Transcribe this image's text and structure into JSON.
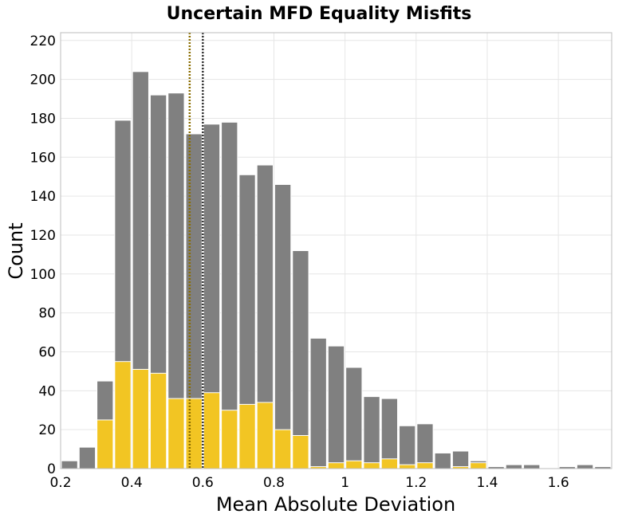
{
  "chart_data": {
    "type": "bar",
    "title": "Uncertain MFD Equality Misfits",
    "xlabel": "Mean Absolute Deviation",
    "ylabel": "Count",
    "xlim": [
      0.2,
      1.75
    ],
    "ylim": [
      0,
      224
    ],
    "x_ticks": [
      0.2,
      0.4,
      0.6,
      0.8,
      1,
      1.2,
      1.4,
      1.6
    ],
    "x_tick_labels": [
      "0.2",
      "0.4",
      "0.6",
      "0.8",
      "1",
      "1.2",
      "1.4",
      "1.6"
    ],
    "y_ticks": [
      0,
      20,
      40,
      60,
      80,
      100,
      120,
      140,
      160,
      180,
      200,
      220
    ],
    "y_tick_labels": [
      "0",
      "20",
      "40",
      "60",
      "80",
      "100",
      "120",
      "140",
      "160",
      "180",
      "200",
      "220"
    ],
    "bin_width": 0.05,
    "bin_starts": [
      0.2,
      0.25,
      0.3,
      0.35,
      0.4,
      0.45,
      0.5,
      0.55,
      0.6,
      0.65,
      0.7,
      0.75,
      0.8,
      0.85,
      0.9,
      0.95,
      1.0,
      1.05,
      1.1,
      1.15,
      1.2,
      1.25,
      1.3,
      1.35,
      1.4,
      1.45,
      1.5,
      1.55,
      1.6,
      1.65,
      1.7
    ],
    "grid": true,
    "series": [
      {
        "color": "#808080",
        "values": [
          4,
          11,
          45,
          179,
          204,
          192,
          193,
          172,
          177,
          178,
          151,
          156,
          146,
          112,
          67,
          63,
          52,
          37,
          36,
          22,
          23,
          8,
          9,
          4,
          1,
          2,
          2,
          0,
          1,
          2,
          1
        ]
      },
      {
        "color": "#f2c523",
        "values": [
          0,
          0,
          25,
          55,
          51,
          49,
          36,
          36,
          39,
          30,
          33,
          34,
          20,
          17,
          1,
          3,
          4,
          3,
          5,
          2,
          3,
          0,
          1,
          3,
          0,
          0,
          0,
          0,
          0,
          0,
          0
        ]
      }
    ],
    "reference_lines": [
      {
        "x": 0.563,
        "color": "#8a6d00",
        "style": "dotted"
      },
      {
        "x": 0.6,
        "color": "#333333",
        "style": "dotted"
      }
    ]
  }
}
